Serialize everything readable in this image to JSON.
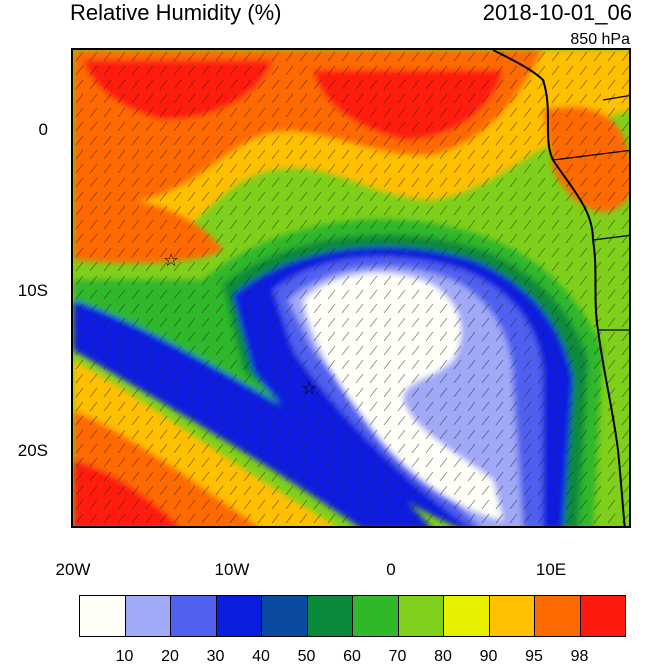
{
  "header": {
    "title": "Relative Humidity (%)",
    "datetime": "2018-10-01_06",
    "level": "850 hPa"
  },
  "map": {
    "lon_labels": [
      "20W",
      "10W",
      "0",
      "10E"
    ],
    "lat_labels": [
      "0",
      "10S",
      "20S"
    ],
    "markers": [
      {
        "name": "star-marker-north",
        "symbol": "☆"
      },
      {
        "name": "star-marker-south",
        "symbol": "☆"
      }
    ]
  },
  "legend": {
    "colors": [
      "#fffff8",
      "#a0a8f8",
      "#5060f0",
      "#0a1ee0",
      "#0a4aa0",
      "#0a8a3a",
      "#2eb82a",
      "#7fd01a",
      "#e6f000",
      "#ffc000",
      "#ff6a00",
      "#ff1a10"
    ],
    "labels": [
      "10",
      "20",
      "30",
      "40",
      "50",
      "60",
      "70",
      "80",
      "90",
      "95",
      "98"
    ]
  }
}
